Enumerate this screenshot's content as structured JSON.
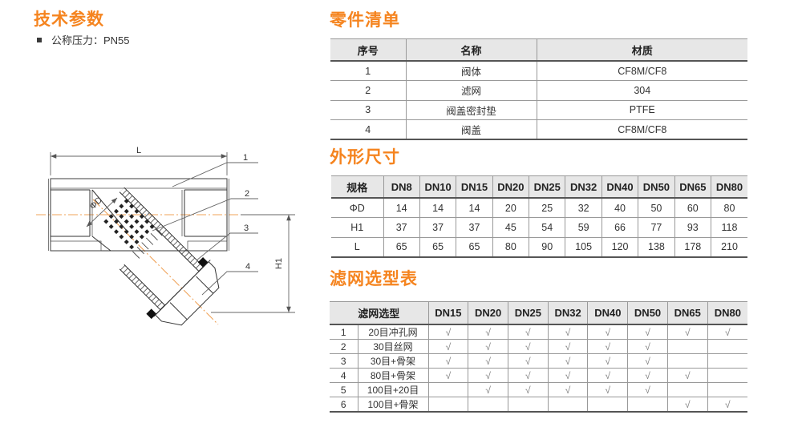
{
  "colors": {
    "accent": "#f5841f",
    "centerline": "#f0a35a",
    "table_header_bg": "#e7e7e7",
    "part_line": "#333333",
    "dim_line": "#666666",
    "check": "#7f7f7f"
  },
  "tech_params": {
    "title": "技术参数",
    "items": [
      "公称压力：PN55"
    ]
  },
  "parts_list": {
    "title": "零件清单",
    "headers": [
      "序号",
      "名称",
      "材质"
    ],
    "rows": [
      [
        "1",
        "阀体",
        "CF8M/CF8"
      ],
      [
        "2",
        "滤网",
        "304"
      ],
      [
        "3",
        "阀盖密封垫",
        "PTFE"
      ],
      [
        "4",
        "阀盖",
        "CF8M/CF8"
      ]
    ]
  },
  "dimensions": {
    "title": "外形尺寸",
    "headers": [
      "规格",
      "DN8",
      "DN10",
      "DN15",
      "DN20",
      "DN25",
      "DN32",
      "DN40",
      "DN50",
      "DN65",
      "DN80"
    ],
    "rows": [
      [
        "ΦD",
        "14",
        "14",
        "14",
        "20",
        "25",
        "32",
        "40",
        "50",
        "60",
        "80"
      ],
      [
        "H1",
        "37",
        "37",
        "37",
        "45",
        "54",
        "59",
        "66",
        "77",
        "93",
        "118"
      ],
      [
        "L",
        "65",
        "65",
        "65",
        "80",
        "90",
        "105",
        "120",
        "138",
        "178",
        "210"
      ]
    ]
  },
  "strainer_selection": {
    "title": "滤网选型表",
    "col_group_header": "滤网选型",
    "dn_headers": [
      "DN15",
      "DN20",
      "DN25",
      "DN32",
      "DN40",
      "DN50",
      "DN65",
      "DN80"
    ],
    "check_symbol": "√",
    "rows": [
      {
        "no": "1",
        "type": "20目冲孔网",
        "checks": [
          1,
          1,
          1,
          1,
          1,
          1,
          1,
          1
        ]
      },
      {
        "no": "2",
        "type": "30目丝网",
        "checks": [
          1,
          1,
          1,
          1,
          1,
          1,
          0,
          0
        ]
      },
      {
        "no": "3",
        "type": "30目+骨架",
        "checks": [
          1,
          1,
          1,
          1,
          1,
          1,
          0,
          0
        ]
      },
      {
        "no": "4",
        "type": "80目+骨架",
        "checks": [
          1,
          1,
          1,
          1,
          1,
          1,
          1,
          0
        ]
      },
      {
        "no": "5",
        "type": "100目+20目",
        "checks": [
          0,
          1,
          1,
          1,
          1,
          1,
          0,
          0
        ]
      },
      {
        "no": "6",
        "type": "100目+骨架",
        "checks": [
          0,
          0,
          0,
          0,
          0,
          0,
          1,
          1
        ]
      }
    ]
  },
  "drawing": {
    "dim_length_label": "L",
    "dim_height_label": "H1",
    "dim_diameter_label": "ΦD",
    "part_callouts": [
      "1",
      "2",
      "3",
      "4"
    ]
  }
}
